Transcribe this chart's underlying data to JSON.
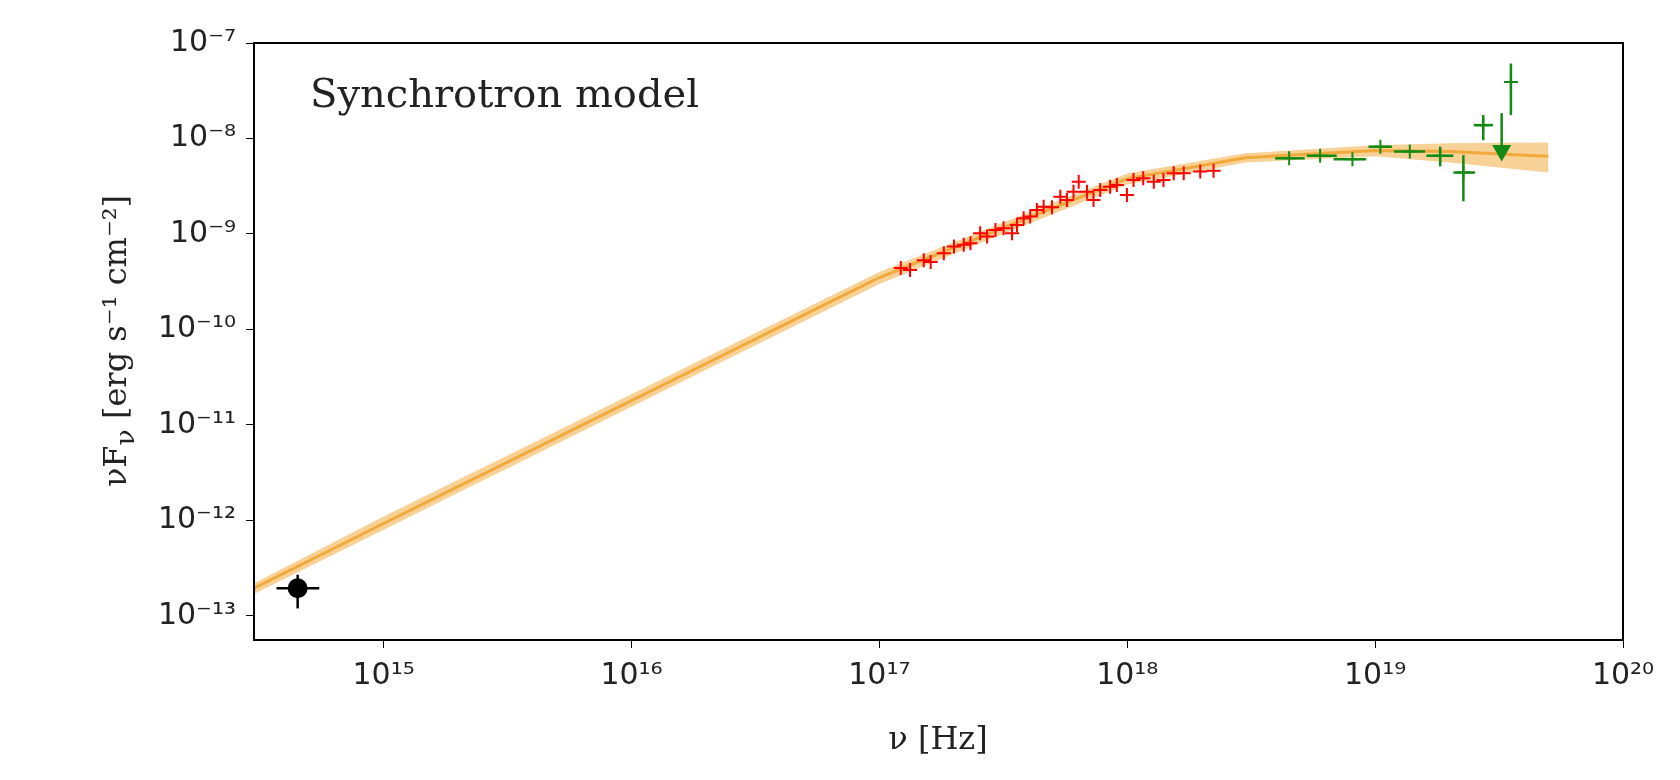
{
  "chart_data": {
    "type": "scatter",
    "xlabel": "ν [Hz]",
    "ylabel": "νF$_{ν}$ [erg s⁻¹ cm⁻²]",
    "annotations": [
      "Synchrotron model"
    ],
    "log": "xy",
    "grid": false,
    "legend": false,
    "xlim": [
      300000000000000.0,
      1e+20
    ],
    "ylim": [
      5.6e-14,
      1e-07
    ],
    "xticks": [
      {
        "value": 1000000000000000.0,
        "label": "10¹⁵"
      },
      {
        "value": 1e+16,
        "label": "10¹⁶"
      },
      {
        "value": 1e+17,
        "label": "10¹⁷"
      },
      {
        "value": 1e+18,
        "label": "10¹⁸"
      },
      {
        "value": 1e+19,
        "label": "10¹⁹"
      },
      {
        "value": 1e+20,
        "label": "10²⁰"
      }
    ],
    "yticks": [
      {
        "value": 1e-13,
        "label": "10⁻¹³"
      },
      {
        "value": 1e-12,
        "label": "10⁻¹²"
      },
      {
        "value": 1e-11,
        "label": "10⁻¹¹"
      },
      {
        "value": 1e-10,
        "label": "10⁻¹⁰"
      },
      {
        "value": 1e-09,
        "label": "10⁻⁹"
      },
      {
        "value": 1e-08,
        "label": "10⁻⁸"
      },
      {
        "value": 1e-07,
        "label": "10⁻⁷"
      }
    ],
    "series": [
      {
        "type": "line",
        "color": "#f2a93b",
        "x": [
          300000000000000.0,
          1000000000000000.0,
          1e+16,
          1e+17,
          3e+17,
          1e+18,
          3e+18,
          1e+19,
          2e+19,
          5e+19
        ],
        "values": [
          1.95e-13,
          9.3e-13,
          1.8e-11,
          3.5e-10,
          1.1e-09,
          3.8e-09,
          6.3e-09,
          7.5e-09,
          7.3e-09,
          6.5e-09
        ],
        "lower": [
          1.7e-13,
          8e-13,
          1.55e-11,
          3e-10,
          9.5e-10,
          3.3e-09,
          5.6e-09,
          6.5e-09,
          5.6e-09,
          4.4e-09
        ],
        "upper": [
          2.2e-13,
          1.1e-12,
          2.1e-11,
          4e-10,
          1.25e-09,
          4.3e-09,
          7e-09,
          8.5e-09,
          8.9e-09,
          9.1e-09
        ]
      },
      {
        "color": "#ff0000",
        "marker": "cross",
        "x": [
          1.22e+17,
          1.33e+17,
          1.51e+17,
          1.61e+17,
          1.82e+17,
          2e+17,
          2.19e+17,
          2.33e+17,
          2.55e+17,
          2.72e+17,
          2.94e+17,
          3.17e+17,
          3.43e+17,
          3.59e+17,
          3.82e+17,
          4.06e+17,
          4.32e+17,
          4.6e+17,
          4.97e+17,
          5.37e+17,
          5.71e+17,
          6.07e+17,
          6.37e+17,
          6.88e+17,
          7.31e+17,
          7.78e+17,
          8.53e+17,
          9.08e+17,
          9.97e+17,
          1.06e+18,
          1.16e+18,
          1.28e+18,
          1.4e+18,
          1.54e+18,
          1.69e+18,
          1.97e+18,
          2.23e+18
        ],
        "values": [
          4.4e-10,
          4.2e-10,
          5.3e-10,
          5.1e-10,
          6.3e-10,
          7.4e-10,
          7.7e-10,
          8e-10,
          1.02e-09,
          9.4e-10,
          1.1e-09,
          1.15e-09,
          1.02e-09,
          1.24e-09,
          1.46e-09,
          1.52e-09,
          1.78e-09,
          1.93e-09,
          1.9e-09,
          2.46e-09,
          2.27e-09,
          2.77e-09,
          3.53e-09,
          2.77e-09,
          2.27e-09,
          2.89e-09,
          3.13e-09,
          3.26e-09,
          2.56e-09,
          3.67e-09,
          3.83e-09,
          3.53e-09,
          3.67e-09,
          4.32e-09,
          4.32e-09,
          4.5e-09,
          4.6e-09
        ]
      },
      {
        "color": "#138a13",
        "marker": "cross",
        "x": [
          4.5e+18,
          6e+18,
          8.1e+18,
          1.05e+19,
          1.38e+19,
          1.83e+19,
          2.27e+19,
          2.73e+19,
          3.53e+19
        ],
        "values": [
          6.2e-09,
          6.6e-09,
          6.05e-09,
          8.2e-09,
          7.3e-09,
          6.6e-09,
          4.4e-09,
          1.38e-08,
          3.9e-08
        ],
        "xerrors": [
          [
            3.95e+18,
            5.2e+18
          ],
          [
            5.3e+18,
            7e+18
          ],
          [
            6.8e+18,
            9.2e+18
          ],
          [
            9.4e+18,
            1.17e+19
          ],
          [
            1.19e+19,
            1.59e+19
          ],
          [
            1.61e+19,
            2.07e+19
          ],
          [
            2.07e+19,
            2.53e+19
          ],
          [
            2.5e+19,
            2.99e+19
          ],
          null
        ],
        "errors": [
          null,
          null,
          null,
          null,
          null,
          [
            5.1e-09,
            8.2e-09
          ],
          [
            2.2e-09,
            6.7e-09
          ],
          [
            9.6e-09,
            1.76e-08
          ],
          [
            1.76e-08,
            6.1e-08
          ]
        ]
      },
      {
        "color": "#138a13",
        "marker": "triangle",
        "x": [
          3.24e+19
        ],
        "values": [
          7.5e-09
        ],
        "errors": [
          [
            7.5e-09,
            1.84e-08
          ]
        ]
      },
      {
        "color": "#000000",
        "marker": "circle",
        "x": [
          450000000000000.0
        ],
        "values": [
          1.95e-13
        ],
        "xerrors": [
          [
            370000000000000.0,
            550000000000000.0
          ]
        ],
        "errors": [
          [
            1.2e-13,
            2.7e-13
          ]
        ]
      }
    ]
  }
}
